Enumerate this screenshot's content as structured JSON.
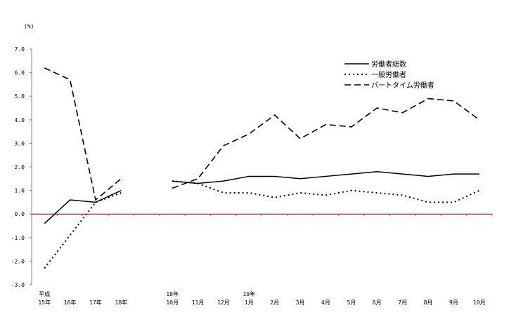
{
  "chart_data": {
    "type": "line",
    "ylabel": "(%)",
    "ylim": [
      -3.0,
      7.0
    ],
    "yticks": [
      "7.0",
      "6.0",
      "5.0",
      "4.0",
      "3.0",
      "2.0",
      "1.0",
      "0.0",
      "-1.0",
      "-2.0",
      "-3.0"
    ],
    "categories": [
      {
        "top": "平成",
        "bottom": "15年"
      },
      {
        "top": "",
        "bottom": "16年"
      },
      {
        "top": "",
        "bottom": "17年"
      },
      {
        "top": "",
        "bottom": "18年"
      },
      {
        "top": "",
        "bottom": ""
      },
      {
        "top": "18年",
        "bottom": "10月"
      },
      {
        "top": "",
        "bottom": "11月"
      },
      {
        "top": "",
        "bottom": "12月"
      },
      {
        "top": "19年",
        "bottom": "1月"
      },
      {
        "top": "",
        "bottom": "2月"
      },
      {
        "top": "",
        "bottom": "3月"
      },
      {
        "top": "",
        "bottom": "4月"
      },
      {
        "top": "",
        "bottom": "5月"
      },
      {
        "top": "",
        "bottom": "6月"
      },
      {
        "top": "",
        "bottom": "7月"
      },
      {
        "top": "",
        "bottom": "8月"
      },
      {
        "top": "",
        "bottom": "9月"
      },
      {
        "top": "",
        "bottom": "10月"
      }
    ],
    "segments": [
      [
        0,
        3
      ],
      [
        5,
        17
      ]
    ],
    "legend_position": "top-right",
    "series": [
      {
        "name": "労働者総数",
        "style": "solid",
        "values": [
          -0.4,
          0.6,
          0.5,
          1.0,
          null,
          1.4,
          1.3,
          1.4,
          1.6,
          1.6,
          1.5,
          1.6,
          1.7,
          1.8,
          1.7,
          1.6,
          1.7,
          1.7
        ]
      },
      {
        "name": "一般労働者",
        "style": "dotted",
        "values": [
          -2.3,
          -0.9,
          0.5,
          0.9,
          null,
          1.4,
          1.3,
          0.9,
          0.9,
          0.7,
          0.9,
          0.8,
          1.0,
          0.9,
          0.8,
          0.5,
          0.5,
          1.0
        ]
      },
      {
        "name": "パートタイム労働者",
        "style": "dashed",
        "values": [
          6.2,
          5.7,
          0.6,
          1.5,
          null,
          1.1,
          1.5,
          2.9,
          3.4,
          4.2,
          3.2,
          3.8,
          3.7,
          4.5,
          4.3,
          4.9,
          4.8,
          4.0
        ]
      }
    ]
  }
}
